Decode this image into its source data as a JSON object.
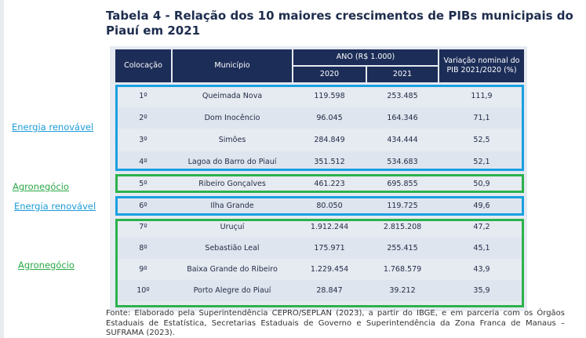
{
  "title": "Tabela 4 - Relação dos 10 maiores crescimentos de PIBs municipais do Piauí em 2021",
  "header": {
    "col_position": "Colocação",
    "col_municipality": "Município",
    "col_year_group": "ANO (R$ 1.000)",
    "col_2020": "2020",
    "col_2021": "2021",
    "col_variation": "Variação nominal do PIB 2021/2020 (%)"
  },
  "rows": [
    {
      "pos": "1º",
      "municipio": "Queimada Nova",
      "y2020": "119.598",
      "y2021": "253.485",
      "var": "111,9"
    },
    {
      "pos": "2º",
      "municipio": "Dom Inocêncio",
      "y2020": "96.045",
      "y2021": "164.346",
      "var": "71,1"
    },
    {
      "pos": "3º",
      "municipio": "Simões",
      "y2020": "284.849",
      "y2021": "434.444",
      "var": "52,5"
    },
    {
      "pos": "4º",
      "municipio": "Lagoa do Barro do Piauí",
      "y2020": "351.512",
      "y2021": "534.683",
      "var": "52,1"
    },
    {
      "pos": "5º",
      "municipio": "Ribeiro Gonçalves",
      "y2020": "461.223",
      "y2021": "695.855",
      "var": "50,9"
    },
    {
      "pos": "6º",
      "municipio": "Ilha Grande",
      "y2020": "80.050",
      "y2021": "119.725",
      "var": "49,6"
    },
    {
      "pos": "7º",
      "municipio": "Uruçuí",
      "y2020": "1.912.244",
      "y2021": "2.815.208",
      "var": "47,2"
    },
    {
      "pos": "8º",
      "municipio": "Sebastião Leal",
      "y2020": "175.971",
      "y2021": "255.415",
      "var": "45,1"
    },
    {
      "pos": "9º",
      "municipio": "Baixa Grande do Ribeiro",
      "y2020": "1.229.454",
      "y2021": "1.768.579",
      "var": "43,9"
    },
    {
      "pos": "10º",
      "municipio": "Porto Alegre do Piauí",
      "y2020": "28.847",
      "y2021": "39.212",
      "var": "35,9"
    }
  ],
  "groups": [
    {
      "label": "Energia renovável",
      "color": "#1aa0e0"
    },
    {
      "label": "Agronegócio",
      "color": "#2bb24c"
    },
    {
      "label": "Energia renovável",
      "color": "#1aa0e0"
    },
    {
      "label": "Agronegócio",
      "color": "#2bb24c"
    }
  ],
  "source": "Fonte: Elaborado pela Superintendência CEPRO/SEPLAN (2023), a partir do IBGE, e em parceria com os Órgãos Estaduais de Estatística, Secretarias Estaduais de Governo e Superintendência da Zona Franca de Manaus – SUFRAMA (2023)."
}
